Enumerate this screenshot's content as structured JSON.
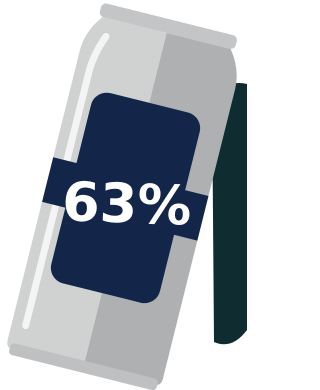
{
  "stat": {
    "text": "63%"
  }
}
